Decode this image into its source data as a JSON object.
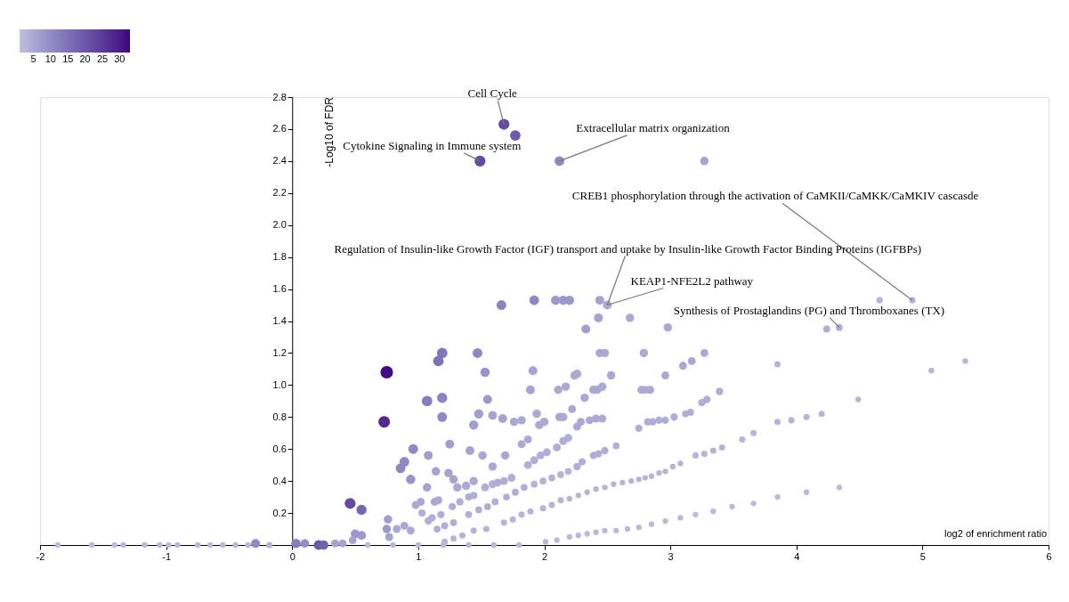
{
  "chart_data": {
    "type": "bubble",
    "xlabel": "log2 of enrichment ratio",
    "ylabel": "-Log10 of FDR",
    "xlim": [
      -2,
      6
    ],
    "ylim": [
      0,
      2.8
    ],
    "xticks": [
      -2,
      -1,
      0,
      1,
      2,
      3,
      4,
      5,
      6
    ],
    "yticks": [
      0.2,
      0.4,
      0.6,
      0.8,
      {
        "value": 1,
        "label": "1.0"
      },
      1.2,
      1.4,
      1.6,
      1.8,
      {
        "value": 2,
        "label": "2.0"
      },
      2.2,
      2.4,
      2.6,
      2.8
    ],
    "clim": [
      1,
      33
    ],
    "cticks": [
      5,
      10,
      15,
      20,
      25,
      30
    ],
    "grid": false,
    "x": [
      1.68,
      1.77,
      1.49,
      2.12,
      3.27,
      1.66,
      1.92,
      2.09,
      2.15,
      2.2,
      2.44,
      2.5,
      2.43,
      2.33,
      2.68,
      2.98,
      4.24,
      4.34,
      4.66,
      4.92,
      0.75,
      0.73,
      0.46,
      0.55,
      1.19,
      1.16,
      1.07,
      1.19,
      1.19,
      1.47,
      1.53,
      1.55,
      0.96,
      0.89,
      0.86,
      0.94,
      1.91,
      1.89,
      1.94,
      2.11,
      2.17,
      2.24,
      2.26,
      2.32,
      2.39,
      2.42,
      2.46,
      2.44,
      2.48,
      2.53,
      2.79,
      2.96,
      3.1,
      3.17,
      3.27,
      3.85,
      5.07,
      5.34,
      1.48,
      1.44,
      1.59,
      1.67,
      1.76,
      1.82,
      1.96,
      2.0,
      2.12,
      2.15,
      2.22,
      2.26,
      2.29,
      2.36,
      2.41,
      2.46,
      2.77,
      2.8,
      2.84,
      3.25,
      3.29,
      3.39,
      4.49,
      2.75,
      2.82,
      2.86,
      2.91,
      2.96,
      3.03,
      3.12,
      3.16,
      3.85,
      3.96,
      4.08,
      4.2,
      1.08,
      1.07,
      1.14,
      1.25,
      1.24,
      1.28,
      1.31,
      1.38,
      1.44,
      1.41,
      1.51,
      1.59,
      1.69,
      1.82,
      1.87,
      1.53,
      1.59,
      1.63,
      1.68,
      1.74,
      1.87,
      1.92,
      1.97,
      2.02,
      2.1,
      2.15,
      2.19,
      2.26,
      2.3,
      2.39,
      2.43,
      2.48,
      2.57,
      3.2,
      3.27,
      3.34,
      3.41,
      3.57,
      3.66,
      0.98,
      1.02,
      1.13,
      1.16,
      1.27,
      1.33,
      1.4,
      1.44,
      1.03,
      1.08,
      1.11,
      1.18,
      1.15,
      1.21,
      1.28,
      1.4,
      1.48,
      1.55,
      1.61,
      1.7,
      1.77,
      1.84,
      1.92,
      1.99,
      2.06,
      2.13,
      2.19,
      1.21,
      1.28,
      1.35,
      1.44,
      1.54,
      1.68,
      1.75,
      1.82,
      1.89,
      1.99,
      2.06,
      2.13,
      2.2,
      2.27,
      2.34,
      2.41,
      2.48,
      2.55,
      2.62,
      2.69,
      2.75,
      2.8,
      2.85,
      2.91,
      2.96,
      3.02,
      3.08,
      2.01,
      2.1,
      2.2,
      2.27,
      2.34,
      2.41,
      2.48,
      2.57,
      2.66,
      2.75,
      2.85,
      2.96,
      3.08,
      3.2,
      3.34,
      3.49,
      3.66,
      3.85,
      4.08,
      4.34,
      0.75,
      0.76,
      0.5,
      0.55,
      0.77,
      0.83,
      0.89,
      0.94,
      0.48,
      -1.86,
      -1.59,
      -1.41,
      -1.34,
      -1.17,
      -1.05,
      -0.98,
      -0.91,
      -0.75,
      -0.65,
      -0.55,
      -0.45,
      -0.35,
      -0.29,
      -0.18,
      0.03,
      0.1,
      0.21,
      0.25,
      0.34,
      0.4,
      0.6,
      0.8,
      1.0,
      1.2,
      1.4,
      1.6,
      1.8
    ],
    "values": [
      2.63,
      2.56,
      2.4,
      2.4,
      2.4,
      1.5,
      1.53,
      1.53,
      1.53,
      1.53,
      1.53,
      1.5,
      1.42,
      1.35,
      1.42,
      1.36,
      1.35,
      1.36,
      1.53,
      1.53,
      1.08,
      0.77,
      0.26,
      0.22,
      1.2,
      1.15,
      0.9,
      0.92,
      0.8,
      1.2,
      1.08,
      0.91,
      0.6,
      0.52,
      0.48,
      0.41,
      1.09,
      0.97,
      0.82,
      0.97,
      0.99,
      1.06,
      1.07,
      0.92,
      0.97,
      0.97,
      0.99,
      1.2,
      1.2,
      1.06,
      1.2,
      1.06,
      1.12,
      1.15,
      1.2,
      1.13,
      1.09,
      1.15,
      0.82,
      0.75,
      0.81,
      0.79,
      0.77,
      0.78,
      0.75,
      0.77,
      0.8,
      0.8,
      0.85,
      0.74,
      0.77,
      0.78,
      0.79,
      0.79,
      0.97,
      0.97,
      0.97,
      0.89,
      0.91,
      0.96,
      0.91,
      0.73,
      0.77,
      0.77,
      0.78,
      0.78,
      0.8,
      0.82,
      0.83,
      0.77,
      0.78,
      0.8,
      0.82,
      0.56,
      0.36,
      0.46,
      0.63,
      0.45,
      0.41,
      0.36,
      0.37,
      0.4,
      0.59,
      0.56,
      0.49,
      0.56,
      0.63,
      0.66,
      0.36,
      0.38,
      0.39,
      0.4,
      0.42,
      0.5,
      0.53,
      0.56,
      0.58,
      0.61,
      0.65,
      0.67,
      0.49,
      0.52,
      0.56,
      0.57,
      0.59,
      0.62,
      0.56,
      0.57,
      0.59,
      0.61,
      0.66,
      0.7,
      0.25,
      0.27,
      0.27,
      0.28,
      0.24,
      0.27,
      0.3,
      0.31,
      0.2,
      0.15,
      0.17,
      0.19,
      0.1,
      0.12,
      0.14,
      0.19,
      0.22,
      0.24,
      0.27,
      0.3,
      0.33,
      0.36,
      0.38,
      0.4,
      0.42,
      0.44,
      0.46,
      0.02,
      0.04,
      0.06,
      0.09,
      0.1,
      0.14,
      0.16,
      0.19,
      0.21,
      0.23,
      0.25,
      0.28,
      0.29,
      0.31,
      0.33,
      0.35,
      0.36,
      0.38,
      0.39,
      0.4,
      0.41,
      0.42,
      0.43,
      0.45,
      0.46,
      0.49,
      0.51,
      0.02,
      0.03,
      0.05,
      0.06,
      0.07,
      0.08,
      0.09,
      0.09,
      0.1,
      0.11,
      0.13,
      0.15,
      0.17,
      0.19,
      0.21,
      0.24,
      0.26,
      0.3,
      0.33,
      0.36,
      0.1,
      0.16,
      0.07,
      0.06,
      0.05,
      0.1,
      0.12,
      0.09,
      0.03,
      0,
      0,
      0,
      0,
      0,
      0,
      0,
      0,
      0,
      0,
      0,
      0,
      0,
      0.01,
      0,
      0.01,
      0.01,
      0,
      0,
      0.01,
      0.01,
      0,
      0,
      0,
      0,
      0,
      0,
      0
    ],
    "sizes": [
      0.75,
      0.7,
      0.75,
      0.6,
      0.45,
      0.6,
      0.6,
      0.55,
      0.55,
      0.55,
      0.5,
      0.5,
      0.5,
      0.5,
      0.45,
      0.45,
      0.3,
      0.3,
      0.25,
      0.25,
      1.0,
      0.85,
      0.75,
      0.65,
      0.7,
      0.7,
      0.7,
      0.65,
      0.6,
      0.6,
      0.55,
      0.5,
      0.6,
      0.6,
      0.6,
      0.55,
      0.5,
      0.5,
      0.45,
      0.45,
      0.45,
      0.45,
      0.45,
      0.45,
      0.45,
      0.45,
      0.45,
      0.45,
      0.45,
      0.45,
      0.45,
      0.4,
      0.4,
      0.4,
      0.4,
      0.25,
      0.2,
      0.2,
      0.55,
      0.55,
      0.5,
      0.5,
      0.45,
      0.45,
      0.45,
      0.45,
      0.45,
      0.45,
      0.4,
      0.4,
      0.4,
      0.4,
      0.4,
      0.4,
      0.4,
      0.4,
      0.4,
      0.35,
      0.35,
      0.35,
      0.2,
      0.35,
      0.35,
      0.35,
      0.35,
      0.35,
      0.35,
      0.3,
      0.3,
      0.25,
      0.25,
      0.25,
      0.25,
      0.5,
      0.45,
      0.45,
      0.5,
      0.45,
      0.45,
      0.45,
      0.45,
      0.45,
      0.5,
      0.45,
      0.45,
      0.45,
      0.4,
      0.4,
      0.4,
      0.4,
      0.4,
      0.4,
      0.4,
      0.4,
      0.4,
      0.4,
      0.4,
      0.4,
      0.4,
      0.4,
      0.35,
      0.35,
      0.35,
      0.35,
      0.35,
      0.3,
      0.25,
      0.25,
      0.25,
      0.25,
      0.25,
      0.25,
      0.4,
      0.4,
      0.4,
      0.4,
      0.35,
      0.35,
      0.35,
      0.35,
      0.35,
      0.35,
      0.35,
      0.35,
      0.3,
      0.3,
      0.3,
      0.3,
      0.3,
      0.3,
      0.3,
      0.3,
      0.3,
      0.3,
      0.3,
      0.3,
      0.3,
      0.3,
      0.3,
      0.25,
      0.25,
      0.25,
      0.25,
      0.25,
      0.25,
      0.25,
      0.25,
      0.25,
      0.25,
      0.25,
      0.25,
      0.2,
      0.2,
      0.2,
      0.2,
      0.2,
      0.2,
      0.2,
      0.2,
      0.2,
      0.2,
      0.2,
      0.2,
      0.2,
      0.2,
      0.2,
      0.2,
      0.2,
      0.2,
      0.2,
      0.2,
      0.2,
      0.2,
      0.2,
      0.2,
      0.2,
      0.2,
      0.2,
      0.2,
      0.2,
      0.2,
      0.2,
      0.2,
      0.2,
      0.2,
      0.2,
      0.45,
      0.45,
      0.5,
      0.5,
      0.4,
      0.4,
      0.4,
      0.4,
      0.4,
      0.2,
      0.2,
      0.2,
      0.2,
      0.2,
      0.2,
      0.2,
      0.2,
      0.2,
      0.2,
      0.2,
      0.2,
      0.2,
      0.5,
      0.25,
      0.55,
      0.45,
      0.6,
      0.55,
      0.4,
      0.4,
      0.2,
      0.2,
      0.2,
      0.2,
      0.2,
      0.2,
      0.2
    ],
    "cvalues": [
      22,
      19,
      22,
      11,
      6,
      12,
      11,
      8,
      8,
      8,
      6,
      5,
      6,
      7,
      5,
      5,
      4,
      4,
      3,
      3,
      32,
      28,
      22,
      17,
      14,
      15,
      13,
      12,
      11,
      11,
      9,
      8,
      11,
      11,
      11,
      9,
      6,
      6,
      5,
      5,
      5,
      5,
      5,
      5,
      5,
      5,
      5,
      5,
      5,
      5,
      5,
      5,
      5,
      5,
      5,
      3,
      3,
      3,
      7,
      7,
      6,
      6,
      5,
      5,
      5,
      5,
      5,
      5,
      5,
      5,
      5,
      5,
      5,
      5,
      5,
      5,
      5,
      4,
      4,
      4,
      3,
      4,
      4,
      4,
      4,
      4,
      4,
      4,
      4,
      3,
      3,
      3,
      3,
      7,
      6,
      6,
      7,
      6,
      6,
      5,
      5,
      5,
      6,
      5,
      5,
      5,
      5,
      5,
      4,
      4,
      4,
      4,
      4,
      4,
      4,
      4,
      4,
      4,
      4,
      4,
      4,
      4,
      4,
      4,
      4,
      4,
      3,
      3,
      3,
      3,
      3,
      3,
      5,
      5,
      5,
      5,
      4,
      4,
      4,
      4,
      4,
      4,
      4,
      4,
      4,
      4,
      4,
      4,
      4,
      4,
      4,
      4,
      4,
      4,
      3,
      3,
      3,
      3,
      3,
      3,
      3,
      3,
      3,
      3,
      3,
      3,
      3,
      3,
      3,
      3,
      3,
      3,
      3,
      3,
      3,
      3,
      3,
      3,
      3,
      3,
      3,
      3,
      3,
      3,
      3,
      3,
      2,
      2,
      2,
      2,
      2,
      2,
      2,
      2,
      2,
      2,
      2,
      2,
      2,
      2,
      2,
      2,
      2,
      2,
      2,
      2,
      8,
      7,
      8,
      8,
      6,
      5,
      5,
      5,
      6,
      2,
      2,
      2,
      2,
      2,
      2,
      2,
      2,
      2,
      2,
      2,
      2,
      2,
      11,
      3,
      13,
      10,
      20,
      18,
      6,
      6,
      2,
      2,
      2,
      2,
      2,
      2,
      2
    ],
    "annotations": [
      {
        "text": "Cell Cycle",
        "x": 1.68,
        "y": 2.63
      },
      {
        "text": "Cytokine Signaling in Immune system",
        "x": 1.49,
        "y": 2.4
      },
      {
        "text": "Extracellular matrix organization",
        "x": 2.12,
        "y": 2.4
      },
      {
        "text": "CREB1 phosphorylation through the activation of CaMKII/CaMKK/CaMKIV cascasde",
        "x": 4.92,
        "y": 1.53
      },
      {
        "text": "Regulation of Insulin-like Growth Factor (IGF) transport and uptake by Insulin-like Growth Factor Binding Proteins (IGFBPs)",
        "x": 2.5,
        "y": 1.5
      },
      {
        "text": "KEAP1-NFE2L2 pathway",
        "x": 2.5,
        "y": 1.5
      },
      {
        "text": "Synthesis of Prostaglandins (PG) and Thromboxanes (TX)",
        "x": 4.34,
        "y": 1.36
      }
    ]
  }
}
